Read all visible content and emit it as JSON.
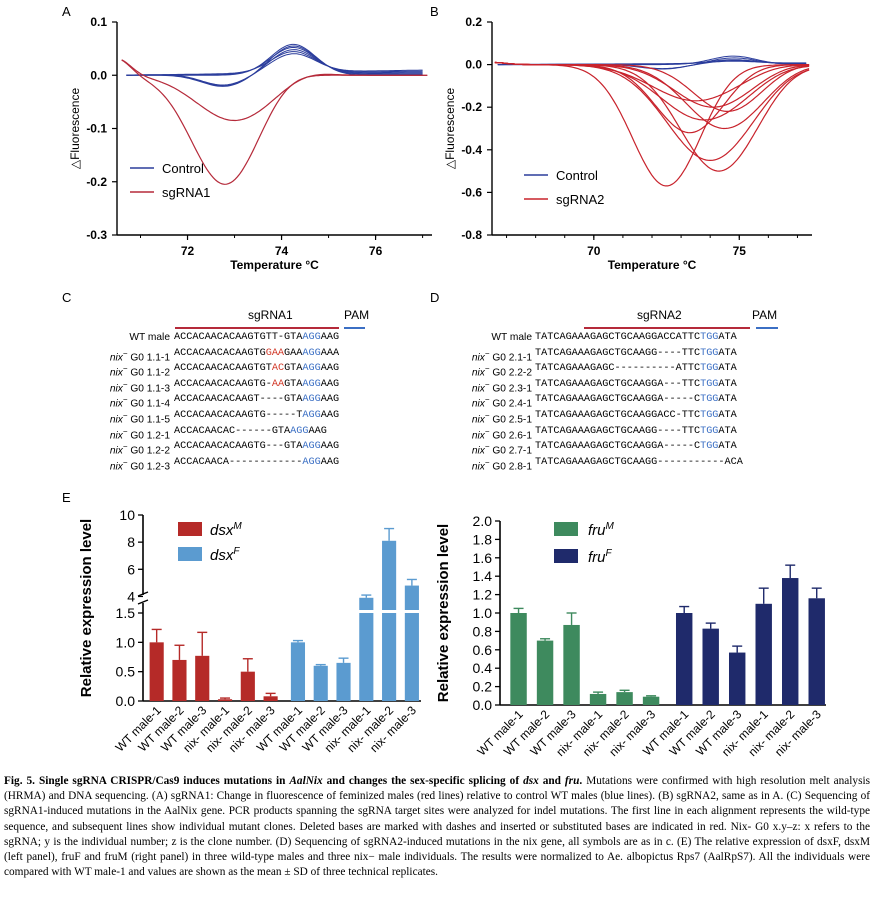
{
  "figure": {
    "panel_labels": [
      "A",
      "B",
      "C",
      "D",
      "E"
    ],
    "colors": {
      "control_blue": "#2b3d9c",
      "sgrna_red": "#b52a3a",
      "sgrna2_red": "#c8232c",
      "dsxM": "#b52a28",
      "dsxF": "#5b9bd0",
      "fruM": "#3e8a5e",
      "fruF": "#1f2a6b",
      "pam_blue": "#3b6fc4",
      "mut_red": "#d23a2a"
    }
  },
  "chart_data": [
    {
      "panel": "A",
      "type": "line",
      "ylabel": "△Fluorescence",
      "xlabel": "Temperature °C",
      "xlim": [
        70.5,
        77.2
      ],
      "ylim": [
        -0.3,
        0.1
      ],
      "x_ticks": [
        "72",
        "74",
        "76"
      ],
      "y_ticks": [
        "0.1",
        "0.0",
        "-0.1",
        "-0.2",
        "-0.3"
      ],
      "legend": [
        "Control",
        "sgRNA1"
      ],
      "series": [
        {
          "name": "Control",
          "peak_x": 74.25,
          "peak_values": [
            0.058,
            0.054,
            0.05,
            0.045,
            0.04,
            0.035
          ]
        },
        {
          "name": "sgRNA1",
          "min_x": [
            72.8,
            73.0
          ],
          "min_values": [
            -0.205,
            -0.085
          ]
        }
      ]
    },
    {
      "panel": "B",
      "type": "line",
      "ylabel": "△Fluorescence",
      "xlabel": "Temperature °C",
      "xlim": [
        66.5,
        77.5
      ],
      "ylim": [
        -0.8,
        0.2
      ],
      "x_ticks": [
        "70",
        "75"
      ],
      "y_ticks": [
        "0.2",
        "0.0",
        "-0.2",
        "-0.4",
        "-0.6",
        "-0.8"
      ],
      "legend": [
        "Control",
        "sgRNA2"
      ],
      "series": [
        {
          "name": "Control",
          "peak_x": 74.8,
          "peak_values": [
            0.04,
            0.03,
            0.02,
            0.015,
            0.01
          ]
        },
        {
          "name": "sgRNA2",
          "min_x": [
            72.5,
            74.3,
            74.0,
            73.3,
            74.5,
            73.8,
            74.6,
            74.1,
            73.5
          ],
          "min_values": [
            -0.57,
            -0.5,
            -0.45,
            -0.32,
            -0.3,
            -0.26,
            -0.22,
            -0.2,
            -0.17
          ]
        }
      ]
    },
    {
      "panel": "E-left",
      "type": "bar",
      "ylabel": "Relative expression level",
      "categories": [
        "WT male-1",
        "WT male-2",
        "WT male-3",
        "nix- male-1",
        "nix- male-2",
        "nix- male-3"
      ],
      "y_ticks_lower": [
        "0.0",
        "0.5",
        "1.0",
        "1.5"
      ],
      "y_ticks_upper": [
        "4",
        "6",
        "8",
        "10"
      ],
      "series": [
        {
          "name": "dsx",
          "superscript": "M",
          "values": [
            1.0,
            0.7,
            0.77,
            0.03,
            0.5,
            0.08
          ],
          "errors": [
            0.22,
            0.25,
            0.4,
            0.02,
            0.22,
            0.05
          ]
        },
        {
          "name": "dsx",
          "superscript": "F",
          "values": [
            1.0,
            0.6,
            0.65,
            3.9,
            8.1,
            4.8
          ],
          "errors": [
            0.03,
            0.02,
            0.08,
            0.2,
            0.9,
            0.45
          ]
        }
      ]
    },
    {
      "panel": "E-right",
      "type": "bar",
      "ylabel": "Relative expression level",
      "categories": [
        "WT male-1",
        "WT male-2",
        "WT male-3",
        "nix- male-1",
        "nix- male-2",
        "nix- male-3"
      ],
      "ylim": [
        0,
        2.0
      ],
      "y_ticks": [
        "0.0",
        "0.2",
        "0.4",
        "0.6",
        "0.8",
        "1.0",
        "1.2",
        "1.4",
        "1.6",
        "1.8",
        "2.0"
      ],
      "series": [
        {
          "name": "fru",
          "superscript": "M",
          "values": [
            1.0,
            0.7,
            0.87,
            0.12,
            0.14,
            0.09
          ],
          "errors": [
            0.05,
            0.02,
            0.13,
            0.02,
            0.02,
            0.01
          ]
        },
        {
          "name": "fru",
          "superscript": "F",
          "values": [
            1.0,
            0.83,
            0.57,
            1.1,
            1.38,
            1.16
          ],
          "errors": [
            0.07,
            0.06,
            0.07,
            0.17,
            0.14,
            0.11
          ]
        }
      ]
    }
  ],
  "alignment_c": {
    "guide": "sgRNA1",
    "pam": "PAM",
    "rows": [
      {
        "label_pre": "",
        "label_post": "WT male",
        "segs": [
          [
            "ACCACAACACAAGTGTT-GTA",
            ""
          ],
          [
            "AGG",
            "b"
          ],
          [
            "AAG",
            ""
          ]
        ]
      },
      {
        "label_pre": "nix",
        "label_post": " G0 1.1-1",
        "segs": [
          [
            "ACCACAACACAAGTG",
            ""
          ],
          [
            "GAA",
            "r"
          ],
          [
            "GAA",
            ""
          ],
          [
            "AGG",
            "b"
          ],
          [
            "AAA",
            ""
          ]
        ]
      },
      {
        "label_pre": "nix",
        "label_post": " G0 1.1-2",
        "segs": [
          [
            "ACCACAACACAAGTGT",
            ""
          ],
          [
            "AC",
            "r"
          ],
          [
            "GTA",
            ""
          ],
          [
            "AGG",
            "b"
          ],
          [
            "AAG",
            ""
          ]
        ]
      },
      {
        "label_pre": "nix",
        "label_post": " G0 1.1-3",
        "segs": [
          [
            "ACCACAACACAAGTG-",
            ""
          ],
          [
            "AA",
            "r"
          ],
          [
            "GTA",
            ""
          ],
          [
            "AGG",
            "b"
          ],
          [
            "AAG",
            ""
          ]
        ]
      },
      {
        "label_pre": "nix",
        "label_post": " G0 1.1-4",
        "segs": [
          [
            "ACCACAACACAAGT----GTA",
            ""
          ],
          [
            "AGG",
            "b"
          ],
          [
            "AAG",
            ""
          ]
        ]
      },
      {
        "label_pre": "nix",
        "label_post": " G0 1.1-5",
        "segs": [
          [
            "ACCACAACACAAGTG-----T",
            ""
          ],
          [
            "AGG",
            "b"
          ],
          [
            "AAG",
            ""
          ]
        ]
      },
      {
        "label_pre": "nix",
        "label_post": " G0 1.2-1",
        "segs": [
          [
            "ACCACAACAC------GTA",
            ""
          ],
          [
            "AGG",
            "b"
          ],
          [
            "AAG",
            ""
          ]
        ]
      },
      {
        "label_pre": "nix",
        "label_post": " G0 1.2-2",
        "segs": [
          [
            "ACCACAACACAAGTG---GTA",
            ""
          ],
          [
            "AGG",
            "b"
          ],
          [
            "AAG",
            ""
          ]
        ]
      },
      {
        "label_pre": "nix",
        "label_post": " G0 1.2-3",
        "segs": [
          [
            "ACCACAACA------------",
            ""
          ],
          [
            "AGG",
            "b"
          ],
          [
            "AAG",
            ""
          ]
        ]
      }
    ]
  },
  "alignment_d": {
    "guide": "sgRNA2",
    "pam": "PAM",
    "rows": [
      {
        "label_pre": "",
        "label_post": "WT male",
        "segs": [
          [
            "TATCAGAAAGAGCTGCAAGGACCATTC",
            ""
          ],
          [
            "TGG",
            "b"
          ],
          [
            "ATA",
            ""
          ]
        ]
      },
      {
        "label_pre": "nix",
        "label_post": " G0 2.1-1",
        "segs": [
          [
            "TATCAGAAAGAGCTGCAAGG----TTC",
            ""
          ],
          [
            "TGG",
            "b"
          ],
          [
            "ATA",
            ""
          ]
        ]
      },
      {
        "label_pre": "nix",
        "label_post": " G0 2.2-2",
        "segs": [
          [
            "TATCAGAAAGAGC----------ATTC",
            ""
          ],
          [
            "TGG",
            "b"
          ],
          [
            "ATA",
            ""
          ]
        ]
      },
      {
        "label_pre": "nix",
        "label_post": " G0 2.3-1",
        "segs": [
          [
            "TATCAGAAAGAGCTGCAAGGA---TTC",
            ""
          ],
          [
            "TGG",
            "b"
          ],
          [
            "ATA",
            ""
          ]
        ]
      },
      {
        "label_pre": "nix",
        "label_post": " G0 2.4-1",
        "segs": [
          [
            "TATCAGAAAGAGCTGCAAGGA-----C",
            ""
          ],
          [
            "TGG",
            "b"
          ],
          [
            "ATA",
            ""
          ]
        ]
      },
      {
        "label_pre": "nix",
        "label_post": " G0 2.5-1",
        "segs": [
          [
            "TATCAGAAAGAGCTGCAAGGACC-TTC",
            ""
          ],
          [
            "TGG",
            "b"
          ],
          [
            "ATA",
            ""
          ]
        ]
      },
      {
        "label_pre": "nix",
        "label_post": " G0 2.6-1",
        "segs": [
          [
            "TATCAGAAAGAGCTGCAAGG----TTC",
            ""
          ],
          [
            "TGG",
            "b"
          ],
          [
            "ATA",
            ""
          ]
        ]
      },
      {
        "label_pre": "nix",
        "label_post": " G0 2.7-1",
        "segs": [
          [
            "TATCAGAAAGAGCTGCAAGGA-----C",
            ""
          ],
          [
            "TGG",
            "b"
          ],
          [
            "ATA",
            ""
          ]
        ]
      },
      {
        "label_pre": "nix",
        "label_post": " G0 2.8-1",
        "segs": [
          [
            "TATCAGAAAGAGCTGCAAGG-----------",
            ""
          ],
          [
            "ACA",
            ""
          ]
        ]
      }
    ]
  },
  "caption": {
    "fig_label": "Fig. 5.",
    "title_parts": [
      "Single sgRNA CRISPR/Cas9 induces mutations in ",
      "AalNix",
      " and changes the sex-specific splicing of ",
      "dsx",
      " and ",
      "fru",
      "."
    ],
    "body": "Mutations were confirmed with high resolution melt analysis (HRMA) and DNA sequencing. (A) sgRNA1: Change in fluorescence of feminized males (red lines) relative to control WT males (blue lines). (B) sgRNA2, same as in A. (C) Sequencing of sgRNA1-induced mutations in the AalNix gene. PCR products spanning the sgRNA target sites were analyzed for indel mutations. The first line in each alignment represents the wild-type sequence, and subsequent lines show individual mutant clones. Deleted bases are marked with dashes and inserted or substituted bases are indicated in red. Nix- G0 x.y–z: x refers to the sgRNA; y is the individual number; z is the clone number. (D) Sequencing of sgRNA2-induced mutations in the nix gene, all symbols are as in c. (E) The relative expression of dsxF, dsxM (left panel), fruF and fruM (right panel) in three wild-type males and three nix− male individuals. The results were normalized to Ae. albopictus Rps7 (AalRpS7). All the individuals were compared with WT male-1 and values are shown as the mean ± SD of three technical replicates."
  }
}
